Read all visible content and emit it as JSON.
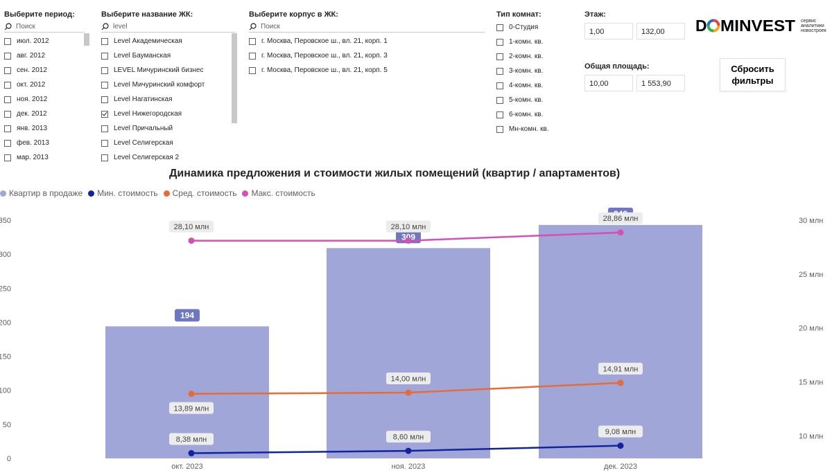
{
  "filters": {
    "period": {
      "label": "Выберите период:",
      "search_placeholder": "Поиск",
      "items": [
        {
          "label": "июл. 2012",
          "checked": false
        },
        {
          "label": "авг. 2012",
          "checked": false
        },
        {
          "label": "сен. 2012",
          "checked": false
        },
        {
          "label": "окт. 2012",
          "checked": false
        },
        {
          "label": "ноя. 2012",
          "checked": false
        },
        {
          "label": "дек. 2012",
          "checked": false
        },
        {
          "label": "янв. 2013",
          "checked": false
        },
        {
          "label": "фев. 2013",
          "checked": false
        },
        {
          "label": "мар. 2013",
          "checked": false
        }
      ]
    },
    "complex": {
      "label": "Выберите название ЖК:",
      "search_value": "level",
      "items": [
        {
          "label": "Level Академическая",
          "checked": false
        },
        {
          "label": "Level Бауманская",
          "checked": false
        },
        {
          "label": "LEVEL Мичуринский бизнес",
          "checked": false
        },
        {
          "label": "Level Мичуринский комфорт",
          "checked": false
        },
        {
          "label": "Level Нагатинская",
          "checked": false
        },
        {
          "label": "Level Нижегородская",
          "checked": true
        },
        {
          "label": "Level Причальный",
          "checked": false
        },
        {
          "label": "Level Селигерская",
          "checked": false
        },
        {
          "label": "Level Селигерская 2",
          "checked": false
        }
      ]
    },
    "building": {
      "label": "Выберите корпус в ЖК:",
      "search_placeholder": "Поиск",
      "items": [
        {
          "label": "г. Москва, Перовское ш., вл. 21, корп. 1",
          "checked": false
        },
        {
          "label": "г. Москва, Перовское ш., вл. 21, корп. 3",
          "checked": false
        },
        {
          "label": "г. Москва, Перовское ш., вл. 21, корп. 5",
          "checked": false
        }
      ]
    },
    "rooms": {
      "label": "Тип комнат:",
      "items": [
        {
          "label": "0-Студия",
          "checked": false
        },
        {
          "label": "1-комн. кв.",
          "checked": false
        },
        {
          "label": "2-комн. кв.",
          "checked": false
        },
        {
          "label": "3-комн. кв.",
          "checked": false
        },
        {
          "label": "4-комн. кв.",
          "checked": false
        },
        {
          "label": "5-комн. кв.",
          "checked": false
        },
        {
          "label": "6-комн. кв.",
          "checked": false
        },
        {
          "label": "Мн-комн. кв.",
          "checked": false
        }
      ]
    },
    "floor": {
      "label": "Этаж:",
      "min": "1,00",
      "max": "132,00"
    },
    "area": {
      "label": "Общая площадь:",
      "min": "10,00",
      "max": "1 553,90"
    },
    "reset_label": "Сбросить фильтры"
  },
  "logo": {
    "text": "DOMINVEST",
    "tagline": [
      "сервис",
      "аналитики",
      "новостроек"
    ],
    "colors": [
      "#e8443a",
      "#f5a623",
      "#2bb24c",
      "#1f6fd1"
    ]
  },
  "chart_data": {
    "type": "bar",
    "title": "Динамика предложения и стоимости жилых помещений (квартир / апартаментов)",
    "categories": [
      "окт. 2023",
      "ноя. 2023",
      "дек. 2023"
    ],
    "series": [
      {
        "name": "Квартир в продаже",
        "type": "bar",
        "axis": "left",
        "color": "#a0a6d8",
        "label_color": "#6f76c2",
        "values": [
          194,
          309,
          343
        ],
        "labels": [
          "194",
          "309",
          "343"
        ]
      },
      {
        "name": "Мин. стоимость",
        "type": "line",
        "axis": "right",
        "color": "#12239e",
        "values": [
          8.38,
          8.6,
          9.08
        ],
        "labels": [
          "8,38 млн",
          "8,60 млн",
          "9,08 млн"
        ]
      },
      {
        "name": "Сред. стоимость",
        "type": "line",
        "axis": "right",
        "color": "#e66c37",
        "values": [
          13.89,
          14.0,
          14.91
        ],
        "labels": [
          "13,89 млн",
          "14,00 млн",
          "14,91 млн"
        ]
      },
      {
        "name": "Макс. стоимость",
        "type": "line",
        "axis": "right",
        "color": "#d64fb5",
        "values": [
          28.1,
          28.1,
          28.86
        ],
        "labels": [
          "28,10 млн",
          "28,10 млн",
          "28,86 млн"
        ]
      }
    ],
    "y_left": {
      "min": 0,
      "max": 350,
      "ticks": [
        0,
        50,
        100,
        150,
        200,
        250,
        300,
        350
      ],
      "tick_labels": [
        "0",
        "50",
        "100",
        "150",
        "200",
        "250",
        "300",
        "350"
      ]
    },
    "y_right": {
      "min": 7.9,
      "max": 30,
      "ticks": [
        10,
        15,
        20,
        25,
        30
      ],
      "tick_labels": [
        "10 млн",
        "15 млн",
        "20 млн",
        "25 млн",
        "30 млн"
      ]
    },
    "legend_position": "top-left",
    "grid": true
  }
}
